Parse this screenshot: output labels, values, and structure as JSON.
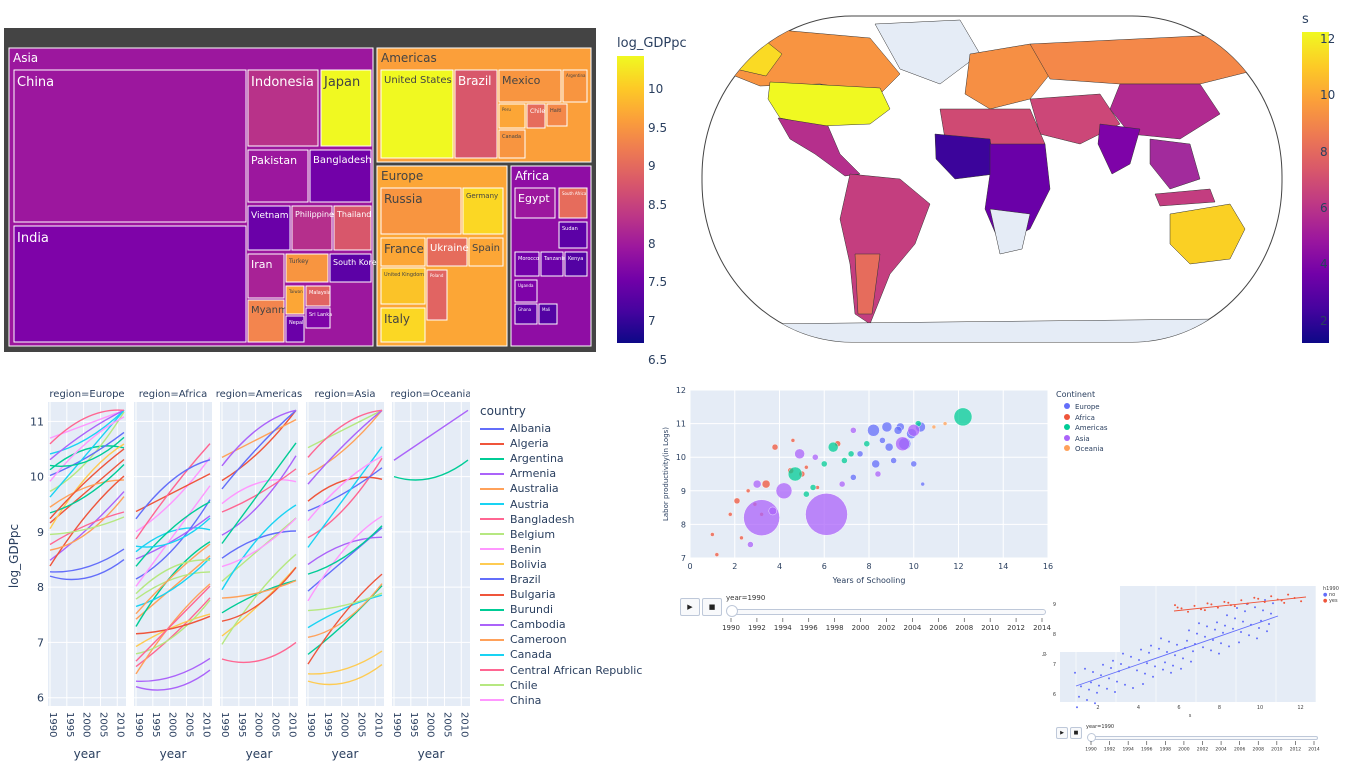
{
  "treemap": {
    "groups": [
      {
        "name": "Asia",
        "countries": [
          "China",
          "India",
          "Indonesia",
          "Japan",
          "Pakistan",
          "Bangladesh",
          "Vietnam",
          "Philippines",
          "Thailand",
          "Iran",
          "Turkey",
          "South Korea",
          "Myanmar",
          "Taiwan",
          "Malaysia",
          "Nepal",
          "Sri Lanka"
        ]
      },
      {
        "name": "Americas",
        "countries": [
          "United States",
          "Brazil",
          "Mexico",
          "Argentina",
          "Peru",
          "Chile",
          "Canada",
          "Haiti"
        ]
      },
      {
        "name": "Europe",
        "countries": [
          "Russia",
          "Germany",
          "France",
          "Ukraine",
          "Spain",
          "United Kingdom",
          "Italy",
          "Poland"
        ]
      },
      {
        "name": "Africa",
        "countries": [
          "Egypt",
          "South Africa",
          "Sudan",
          "Morocco",
          "Tanzania",
          "Kenya",
          "Uganda",
          "Ghana",
          "Mali"
        ]
      }
    ]
  },
  "treemap_colorbar": {
    "title": "log_GDPpc",
    "ticks": [
      "10",
      "9.5",
      "9",
      "8.5",
      "8",
      "7.5",
      "7",
      "6.5"
    ]
  },
  "map_colorbar": {
    "title": "s",
    "ticks": [
      "12",
      "10",
      "8",
      "6",
      "4",
      "2"
    ]
  },
  "lines_chart": {
    "ylabel": "log_GDPpc",
    "xlabel": "year",
    "yticks": [
      "11",
      "10",
      "9",
      "8",
      "7",
      "6"
    ],
    "xticks": [
      "1990",
      "1995",
      "2000",
      "2005",
      "2010"
    ],
    "panels": [
      "region=Europe",
      "region=Africa",
      "region=Americas",
      "region=Asia",
      "region=Oceania"
    ]
  },
  "lines_legend": {
    "title": "country",
    "items": [
      {
        "name": "Albania",
        "color": "#636efa"
      },
      {
        "name": "Algeria",
        "color": "#EF553B"
      },
      {
        "name": "Argentina",
        "color": "#00cc96"
      },
      {
        "name": "Armenia",
        "color": "#ab63fa"
      },
      {
        "name": "Australia",
        "color": "#FFA15A"
      },
      {
        "name": "Austria",
        "color": "#19d3f3"
      },
      {
        "name": "Bangladesh",
        "color": "#FF6692"
      },
      {
        "name": "Belgium",
        "color": "#B6E880"
      },
      {
        "name": "Benin",
        "color": "#FF97FF"
      },
      {
        "name": "Bolivia",
        "color": "#FECB52"
      },
      {
        "name": "Brazil",
        "color": "#636efa"
      },
      {
        "name": "Bulgaria",
        "color": "#EF553B"
      },
      {
        "name": "Burundi",
        "color": "#00cc96"
      },
      {
        "name": "Cambodia",
        "color": "#ab63fa"
      },
      {
        "name": "Cameroon",
        "color": "#FFA15A"
      },
      {
        "name": "Canada",
        "color": "#19d3f3"
      },
      {
        "name": "Central African Republic",
        "color": "#FF6692"
      },
      {
        "name": "Chile",
        "color": "#B6E880"
      },
      {
        "name": "China",
        "color": "#FF97FF"
      }
    ]
  },
  "chart_data": {
    "type": "scatter",
    "title": "",
    "xlabel": "Years of Schooling",
    "ylabel": "Labor productivity(in Logs)",
    "xlim": [
      0,
      16
    ],
    "ylim": [
      7,
      12
    ],
    "xticks": [
      "0",
      "2",
      "4",
      "6",
      "8",
      "10",
      "12",
      "14",
      "16"
    ],
    "yticks": [
      "12",
      "11",
      "10",
      "9",
      "8",
      "7"
    ],
    "legend_title": "Continent",
    "legend_position": "right",
    "series": [
      {
        "name": "Europe",
        "color": "#636efa",
        "points": [
          [
            8.2,
            10.8
          ],
          [
            8.8,
            10.9
          ],
          [
            9.4,
            10.9
          ],
          [
            10.3,
            10.9
          ],
          [
            9.6,
            10.4
          ],
          [
            8.9,
            10.3
          ],
          [
            7.6,
            10.1
          ],
          [
            8.3,
            9.8
          ],
          [
            9.1,
            9.9
          ],
          [
            10.0,
            9.8
          ],
          [
            10.4,
            9.2
          ],
          [
            7.3,
            9.4
          ],
          [
            9.9,
            10.7
          ],
          [
            8.6,
            10.5
          ],
          [
            9.3,
            10.8
          ]
        ]
      },
      {
        "name": "Africa",
        "color": "#EF553B",
        "points": [
          [
            1.0,
            7.7
          ],
          [
            2.1,
            8.7
          ],
          [
            2.6,
            9.0
          ],
          [
            3.4,
            9.2
          ],
          [
            4.5,
            9.6
          ],
          [
            5.0,
            9.5
          ],
          [
            1.8,
            8.3
          ],
          [
            2.9,
            8.6
          ],
          [
            3.8,
            10.3
          ],
          [
            4.6,
            10.5
          ],
          [
            5.2,
            9.7
          ],
          [
            6.6,
            10.4
          ],
          [
            1.2,
            7.1
          ],
          [
            2.3,
            7.6
          ],
          [
            3.2,
            8.3
          ],
          [
            5.7,
            9.1
          ]
        ]
      },
      {
        "name": "Americas",
        "color": "#00cc96",
        "points": [
          [
            4.7,
            9.5
          ],
          [
            6.4,
            10.3
          ],
          [
            7.2,
            10.1
          ],
          [
            5.2,
            8.9
          ],
          [
            6.0,
            9.8
          ],
          [
            7.9,
            10.4
          ],
          [
            12.2,
            11.2
          ],
          [
            6.9,
            9.9
          ],
          [
            10.2,
            11.0
          ],
          [
            5.5,
            9.1
          ]
        ]
      },
      {
        "name": "Asia",
        "color": "#ab63fa",
        "points": [
          [
            3.2,
            8.2
          ],
          [
            6.1,
            8.3
          ],
          [
            4.2,
            9.0
          ],
          [
            3.0,
            9.2
          ],
          [
            9.5,
            10.4
          ],
          [
            7.3,
            10.8
          ],
          [
            4.9,
            10.1
          ],
          [
            10.0,
            10.8
          ],
          [
            5.6,
            10.0
          ],
          [
            3.7,
            8.4
          ],
          [
            6.8,
            9.2
          ],
          [
            2.7,
            7.4
          ],
          [
            8.4,
            9.5
          ]
        ]
      },
      {
        "name": "Oceania",
        "color": "#FFA15A",
        "points": [
          [
            10.9,
            10.9
          ],
          [
            11.4,
            11.0
          ]
        ]
      }
    ]
  },
  "slider1": {
    "label": "year=1990",
    "ticks": [
      "1990",
      "1992",
      "1994",
      "1996",
      "1998",
      "2000",
      "2002",
      "2004",
      "2006",
      "2008",
      "2010",
      "2012",
      "2014"
    ],
    "play": "▶",
    "stop": "■"
  },
  "mini_chart": {
    "legend_title": "h1990",
    "legend_items": [
      "no",
      "yes"
    ],
    "ylabel": "lp",
    "xlabel": "s",
    "xticks": [
      "2",
      "4",
      "6",
      "8",
      "10",
      "12"
    ],
    "yticks": [
      "9",
      "8",
      "7",
      "6"
    ]
  },
  "slider2": {
    "label": "year=1990",
    "ticks": [
      "1990",
      "1992",
      "1994",
      "1996",
      "1998",
      "2000",
      "2002",
      "2004",
      "2006",
      "2008",
      "2010",
      "2012",
      "2014"
    ],
    "play": "▶",
    "stop": "■"
  }
}
